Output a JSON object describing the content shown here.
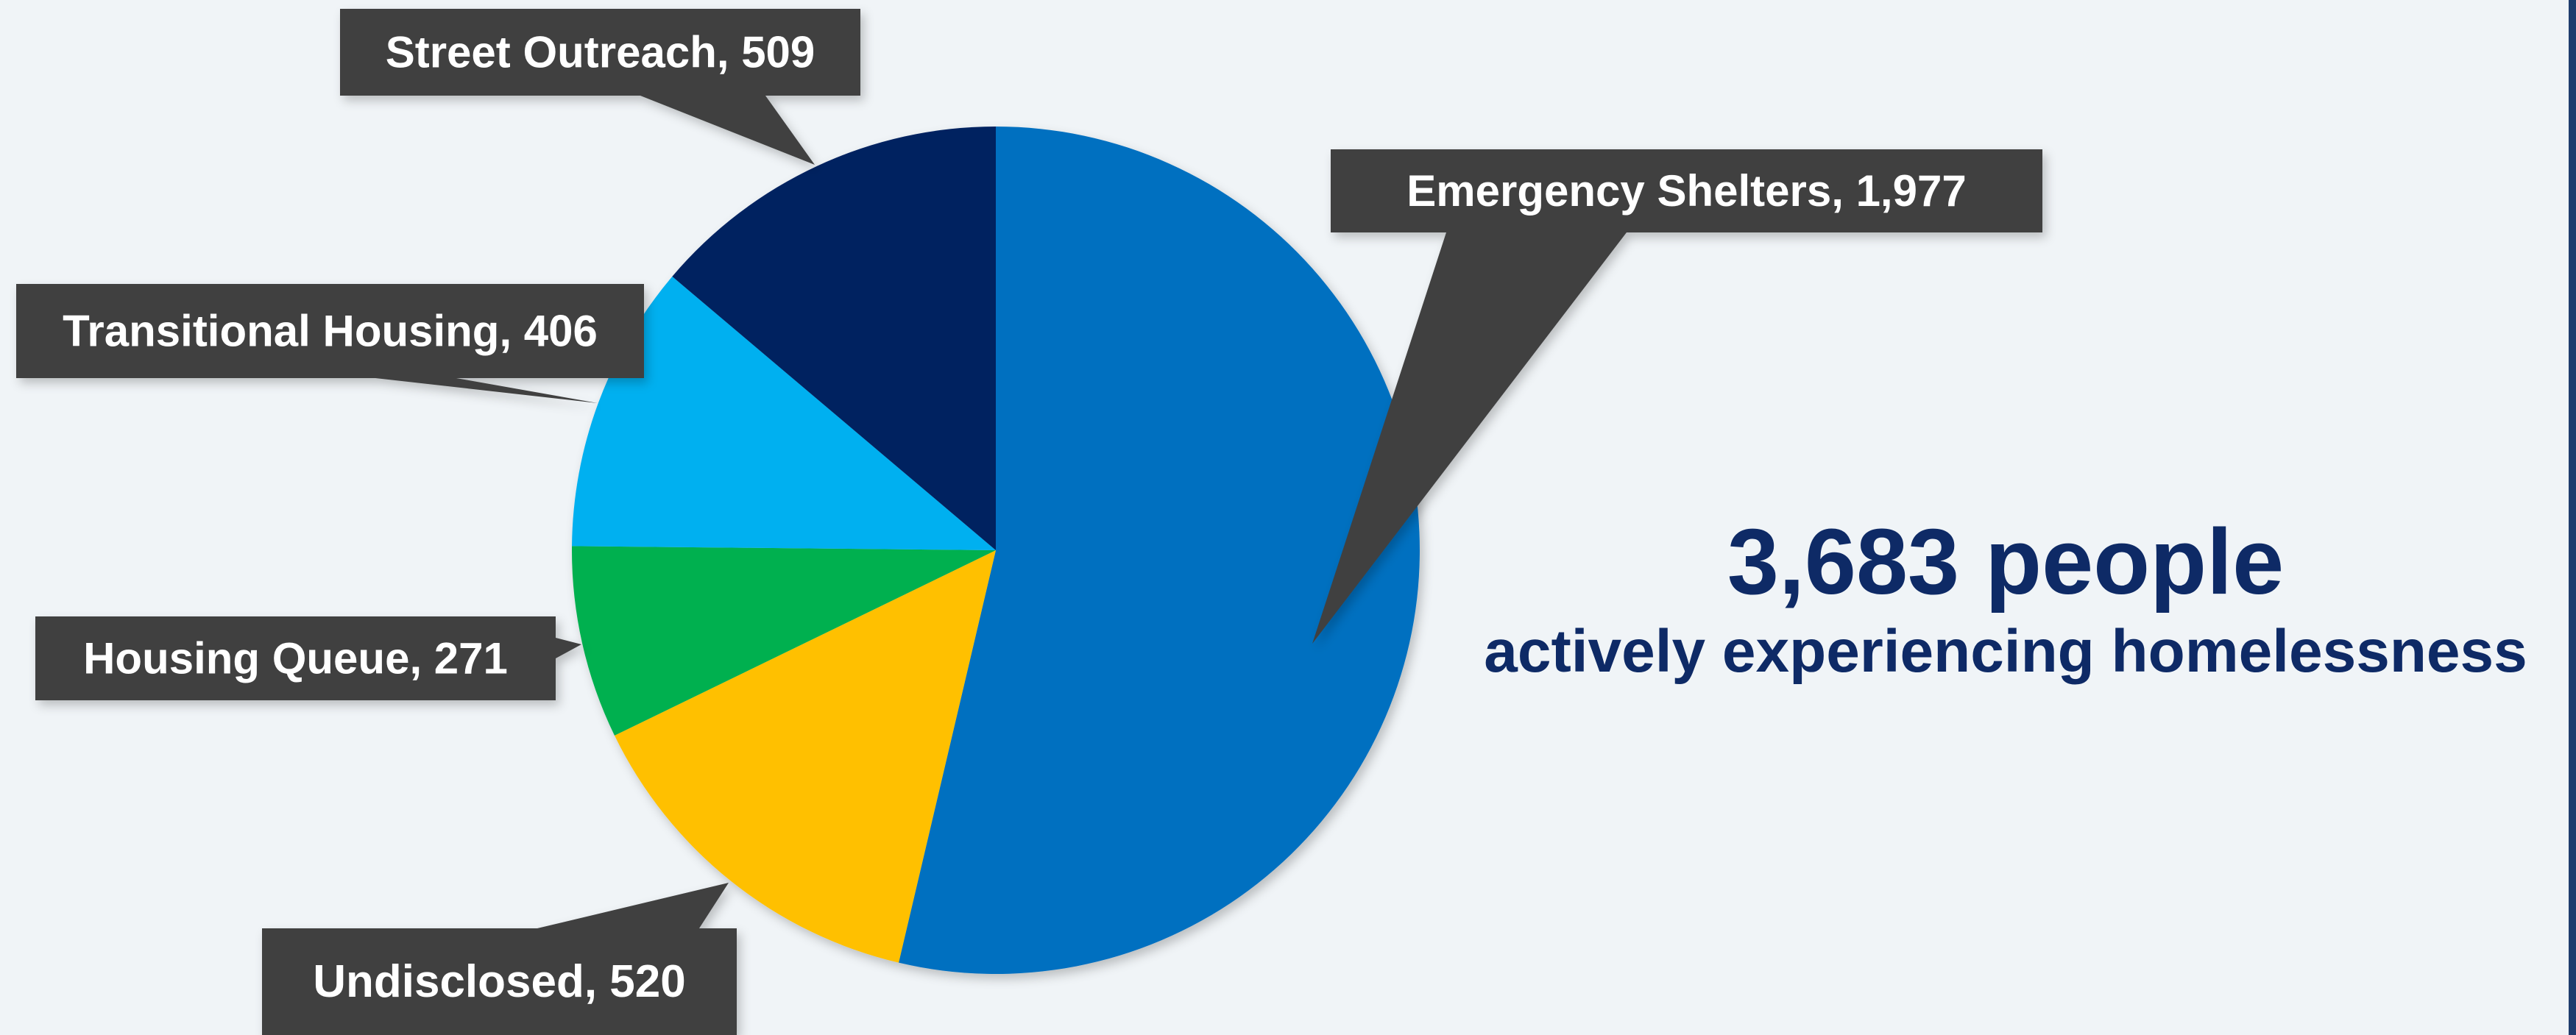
{
  "chart_data": {
    "type": "pie",
    "slices": [
      {
        "label": "Emergency Shelters",
        "value": 1977,
        "color": "#0070c0",
        "display": "Emergency Shelters, 1,977"
      },
      {
        "label": "Undisclosed",
        "value": 520,
        "color": "#ffc000",
        "display": "Undisclosed, 520"
      },
      {
        "label": "Housing Queue",
        "value": 271,
        "color": "#00b050",
        "display": "Housing Queue, 271"
      },
      {
        "label": "Transitional Housing",
        "value": 406,
        "color": "#00b0f0",
        "display": "Transitional Housing, 406"
      },
      {
        "label": "Street Outreach",
        "value": 509,
        "color": "#002060",
        "display": "Street Outreach, 509"
      }
    ],
    "total": {
      "number": "3,683 people",
      "caption": "actively experiencing homelessness"
    }
  },
  "colors": {
    "background": "#f0f4f7",
    "callout": "#404040",
    "callout_text": "#ffffff",
    "total_text": "#0e2a66",
    "side_bar": "#1f3c6e"
  }
}
